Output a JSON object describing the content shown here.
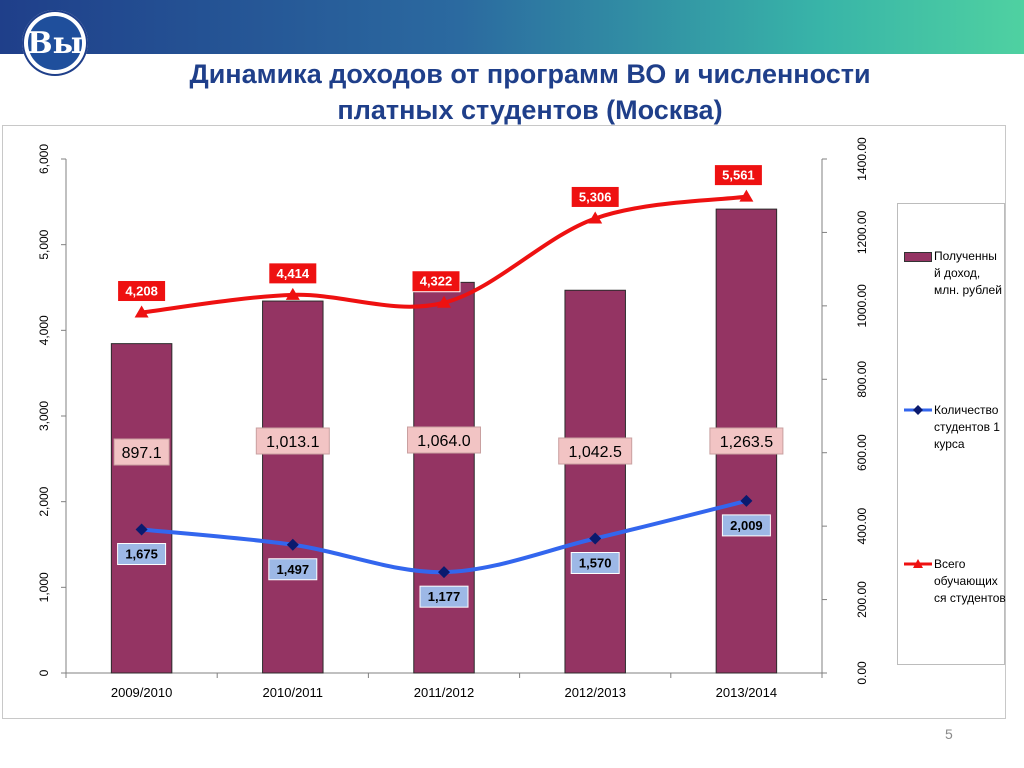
{
  "slide": {
    "title_line1": "Динамика доходов от программ ВО и численности",
    "title_line2": "платных студентов (Москва)",
    "page_number": "5",
    "logo_glyph": "Вы"
  },
  "chart_data": {
    "type": "bar",
    "categories": [
      "2009/2010",
      "2010/2011",
      "2011/2012",
      "2012/2013",
      "2013/2014"
    ],
    "y_left": {
      "ylim": [
        0,
        6000
      ],
      "ticks": [
        "0",
        "1,000",
        "2,000",
        "3,000",
        "4,000",
        "5,000",
        "6,000"
      ]
    },
    "y_right": {
      "ylim": [
        0,
        1400
      ],
      "ticks": [
        "0.00",
        "200.00",
        "400.00",
        "600.00",
        "800.00",
        "1000.00",
        "1200.00",
        "1400.00"
      ]
    },
    "series": [
      {
        "name": "Полученный доход, млн. рублей",
        "kind": "bar",
        "axis": "right",
        "color": "#943463",
        "values": [
          897.1,
          1013.1,
          1064.0,
          1042.5,
          1263.5
        ],
        "labels": [
          "897.1",
          "1,013.1",
          "1,064.0",
          "1,042.5",
          "1,263.5"
        ]
      },
      {
        "name": "Количество студентов 1 курса",
        "kind": "line",
        "axis": "left",
        "color": "#3366ee",
        "values": [
          1675,
          1497,
          1177,
          1570,
          2009
        ],
        "labels": [
          "1,675",
          "1,497",
          "1,177",
          "1,570",
          "2,009"
        ]
      },
      {
        "name": "Всего обучающихся студентов",
        "kind": "line",
        "axis": "left",
        "color": "#ee1111",
        "values": [
          4208,
          4414,
          4322,
          5306,
          5561
        ],
        "labels": [
          "4,208",
          "4,414",
          "4,322",
          "5,306",
          "5,561"
        ]
      }
    ],
    "legend": {
      "position": "right",
      "items": [
        "Полученны й доход, млн. рублей",
        "Количество студентов 1 курса",
        "Всего обучающих ся студентов"
      ]
    },
    "grid": false
  }
}
